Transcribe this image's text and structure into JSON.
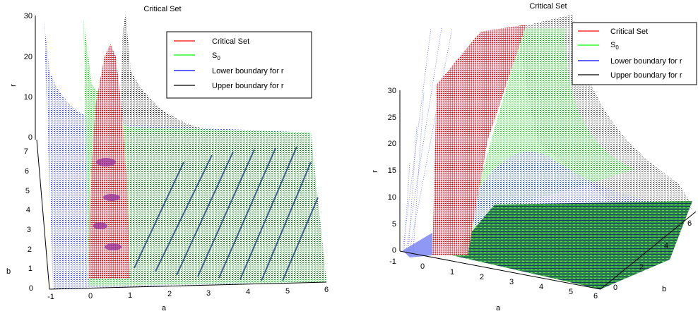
{
  "chart_data": [
    {
      "type": "surface3d",
      "title": "Critical Set",
      "xlabel": "a",
      "ylabel": "b",
      "zlabel": "r",
      "x_ticks": [
        "-1",
        "0",
        "1",
        "2",
        "3",
        "4",
        "5",
        "6"
      ],
      "y_ticks": [
        "0",
        "1",
        "2",
        "3",
        "4",
        "5",
        "6",
        "7"
      ],
      "z_ticks": [
        "0",
        "10",
        "20",
        "30"
      ],
      "xlim": [
        -1.2,
        6
      ],
      "ylim": [
        0,
        7.5
      ],
      "zlim": [
        0,
        30
      ],
      "legend": {
        "position": "top-right",
        "entries": [
          {
            "label": "Critical Set",
            "color": "#ff0000"
          },
          {
            "label_main": "S",
            "label_sub": "0",
            "color": "#00ff00"
          },
          {
            "label": "Lower boundary for r",
            "color": "#0000ff"
          },
          {
            "label": "Upper boundary for r",
            "color": "#000000"
          }
        ]
      }
    },
    {
      "type": "surface3d",
      "title": "Critical Set",
      "xlabel": "a",
      "ylabel": "b",
      "zlabel": "r",
      "x_ticks": [
        "-1",
        "0",
        "1",
        "2",
        "3",
        "4",
        "5",
        "6"
      ],
      "y_ticks": [
        "0",
        "2",
        "4",
        "6"
      ],
      "z_ticks": [
        "0",
        "5",
        "10",
        "15",
        "20",
        "25",
        "30"
      ],
      "xlim": [
        -1.2,
        6
      ],
      "ylim": [
        0,
        7
      ],
      "zlim": [
        0,
        30
      ],
      "legend": {
        "position": "top-right",
        "entries": [
          {
            "label": "Critical Set",
            "color": "#ff0000"
          },
          {
            "label_main": "S",
            "label_sub": "0",
            "color": "#00ff00"
          },
          {
            "label": "Lower boundary for r",
            "color": "#0000ff"
          },
          {
            "label": "Upper boundary for r",
            "color": "#000000"
          }
        ]
      }
    }
  ]
}
